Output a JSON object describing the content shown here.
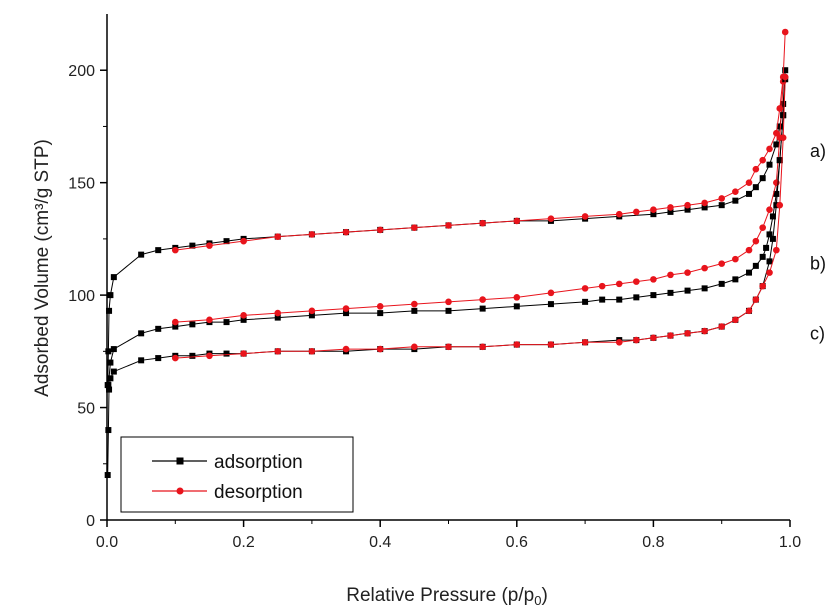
{
  "chart_data": {
    "type": "line",
    "title": "",
    "xlabel": "Relative Pressure (p/p",
    "xlabel_sub": "0",
    "xlabel_end": ")",
    "ylabel": "Adsorbed Volume (cm³/g STP)",
    "xlim": [
      0.0,
      1.0
    ],
    "ylim": [
      0,
      225
    ],
    "xticks": [
      "0.0",
      "0.2",
      "0.4",
      "0.6",
      "0.8",
      "1.0"
    ],
    "yticks": [
      "0",
      "50",
      "100",
      "150",
      "200"
    ],
    "grid": false,
    "legend_position": "bottom-left",
    "legend": [
      {
        "name": "adsorption",
        "color": "#000000",
        "marker": "square"
      },
      {
        "name": "desorption",
        "color": "#e8141c",
        "marker": "circle"
      }
    ],
    "curve_labels": [
      {
        "text": "a)",
        "value": 164
      },
      {
        "text": "b)",
        "value": 114
      },
      {
        "text": "c)",
        "value": 83
      }
    ],
    "series": [
      {
        "sample": "a)",
        "kind": "adsorption",
        "color": "#000000",
        "x": [
          0.001,
          0.002,
          0.003,
          0.005,
          0.01,
          0.05,
          0.075,
          0.1,
          0.125,
          0.15,
          0.175,
          0.2,
          0.25,
          0.3,
          0.35,
          0.4,
          0.45,
          0.5,
          0.55,
          0.6,
          0.65,
          0.7,
          0.75,
          0.8,
          0.825,
          0.85,
          0.875,
          0.9,
          0.92,
          0.94,
          0.95,
          0.96,
          0.97,
          0.98,
          0.985,
          0.99,
          0.993
        ],
        "y": [
          60,
          75,
          93,
          100,
          108,
          118,
          120,
          121,
          122,
          123,
          124,
          125,
          126,
          127,
          128,
          129,
          130,
          131,
          132,
          133,
          133,
          134,
          135,
          136,
          137,
          138,
          139,
          140,
          142,
          145,
          148,
          152,
          158,
          167,
          175,
          185,
          200
        ]
      },
      {
        "sample": "a)",
        "kind": "desorption",
        "color": "#e8141c",
        "x": [
          0.993,
          0.99,
          0.985,
          0.98,
          0.97,
          0.96,
          0.95,
          0.94,
          0.92,
          0.9,
          0.875,
          0.85,
          0.825,
          0.8,
          0.775,
          0.75,
          0.7,
          0.65,
          0.6,
          0.55,
          0.5,
          0.45,
          0.4,
          0.35,
          0.3,
          0.25,
          0.2,
          0.15,
          0.1
        ],
        "y": [
          217,
          197,
          183,
          172,
          165,
          160,
          156,
          150,
          146,
          143,
          141,
          140,
          139,
          138,
          137,
          136,
          135,
          134,
          133,
          132,
          131,
          130,
          129,
          128,
          127,
          126,
          124,
          122,
          120
        ]
      },
      {
        "sample": "b)",
        "kind": "adsorption",
        "color": "#000000",
        "x": [
          0.002,
          0.005,
          0.01,
          0.05,
          0.075,
          0.1,
          0.125,
          0.15,
          0.175,
          0.2,
          0.25,
          0.3,
          0.35,
          0.4,
          0.45,
          0.5,
          0.55,
          0.6,
          0.65,
          0.7,
          0.725,
          0.75,
          0.775,
          0.8,
          0.825,
          0.85,
          0.875,
          0.9,
          0.92,
          0.94,
          0.95,
          0.96,
          0.965,
          0.97,
          0.975,
          0.98,
          0.985,
          0.99
        ],
        "y": [
          60,
          70,
          76,
          83,
          85,
          86,
          87,
          88,
          88,
          89,
          90,
          91,
          92,
          92,
          93,
          93,
          94,
          95,
          96,
          97,
          98,
          98,
          99,
          100,
          101,
          102,
          103,
          105,
          107,
          110,
          113,
          117,
          121,
          127,
          135,
          145,
          160,
          180
        ]
      },
      {
        "sample": "b)",
        "kind": "desorption",
        "color": "#e8141c",
        "x": [
          0.99,
          0.985,
          0.98,
          0.97,
          0.96,
          0.95,
          0.94,
          0.92,
          0.9,
          0.875,
          0.85,
          0.825,
          0.8,
          0.775,
          0.75,
          0.725,
          0.7,
          0.65,
          0.6,
          0.55,
          0.5,
          0.45,
          0.4,
          0.35,
          0.3,
          0.25,
          0.2,
          0.15,
          0.1
        ],
        "y": [
          195,
          170,
          150,
          138,
          130,
          124,
          120,
          116,
          114,
          112,
          110,
          109,
          107,
          106,
          105,
          104,
          103,
          101,
          99,
          98,
          97,
          96,
          95,
          94,
          93,
          92,
          91,
          89,
          88
        ]
      },
      {
        "sample": "c)",
        "kind": "adsorption",
        "color": "#000000",
        "x": [
          0.001,
          0.002,
          0.003,
          0.005,
          0.01,
          0.05,
          0.075,
          0.1,
          0.125,
          0.15,
          0.175,
          0.2,
          0.25,
          0.3,
          0.35,
          0.4,
          0.45,
          0.5,
          0.55,
          0.6,
          0.65,
          0.7,
          0.75,
          0.775,
          0.8,
          0.825,
          0.85,
          0.875,
          0.9,
          0.92,
          0.94,
          0.95,
          0.96,
          0.97,
          0.975,
          0.98,
          0.985,
          0.99,
          0.993
        ],
        "y": [
          20,
          40,
          58,
          63,
          66,
          71,
          72,
          73,
          73,
          74,
          74,
          74,
          75,
          75,
          75,
          76,
          76,
          77,
          77,
          78,
          78,
          79,
          80,
          80,
          81,
          82,
          83,
          84,
          86,
          89,
          93,
          98,
          104,
          115,
          125,
          140,
          160,
          180,
          196
        ]
      },
      {
        "sample": "c)",
        "kind": "desorption",
        "color": "#e8141c",
        "x": [
          0.993,
          0.99,
          0.985,
          0.98,
          0.97,
          0.96,
          0.95,
          0.94,
          0.92,
          0.9,
          0.875,
          0.85,
          0.825,
          0.8,
          0.775,
          0.75,
          0.7,
          0.65,
          0.6,
          0.55,
          0.5,
          0.45,
          0.4,
          0.35,
          0.3,
          0.25,
          0.2,
          0.15,
          0.1
        ],
        "y": [
          197,
          170,
          140,
          120,
          110,
          104,
          98,
          93,
          89,
          86,
          84,
          83,
          82,
          81,
          80,
          79,
          79,
          78,
          78,
          77,
          77,
          77,
          76,
          76,
          75,
          75,
          74,
          73,
          72
        ]
      }
    ]
  }
}
